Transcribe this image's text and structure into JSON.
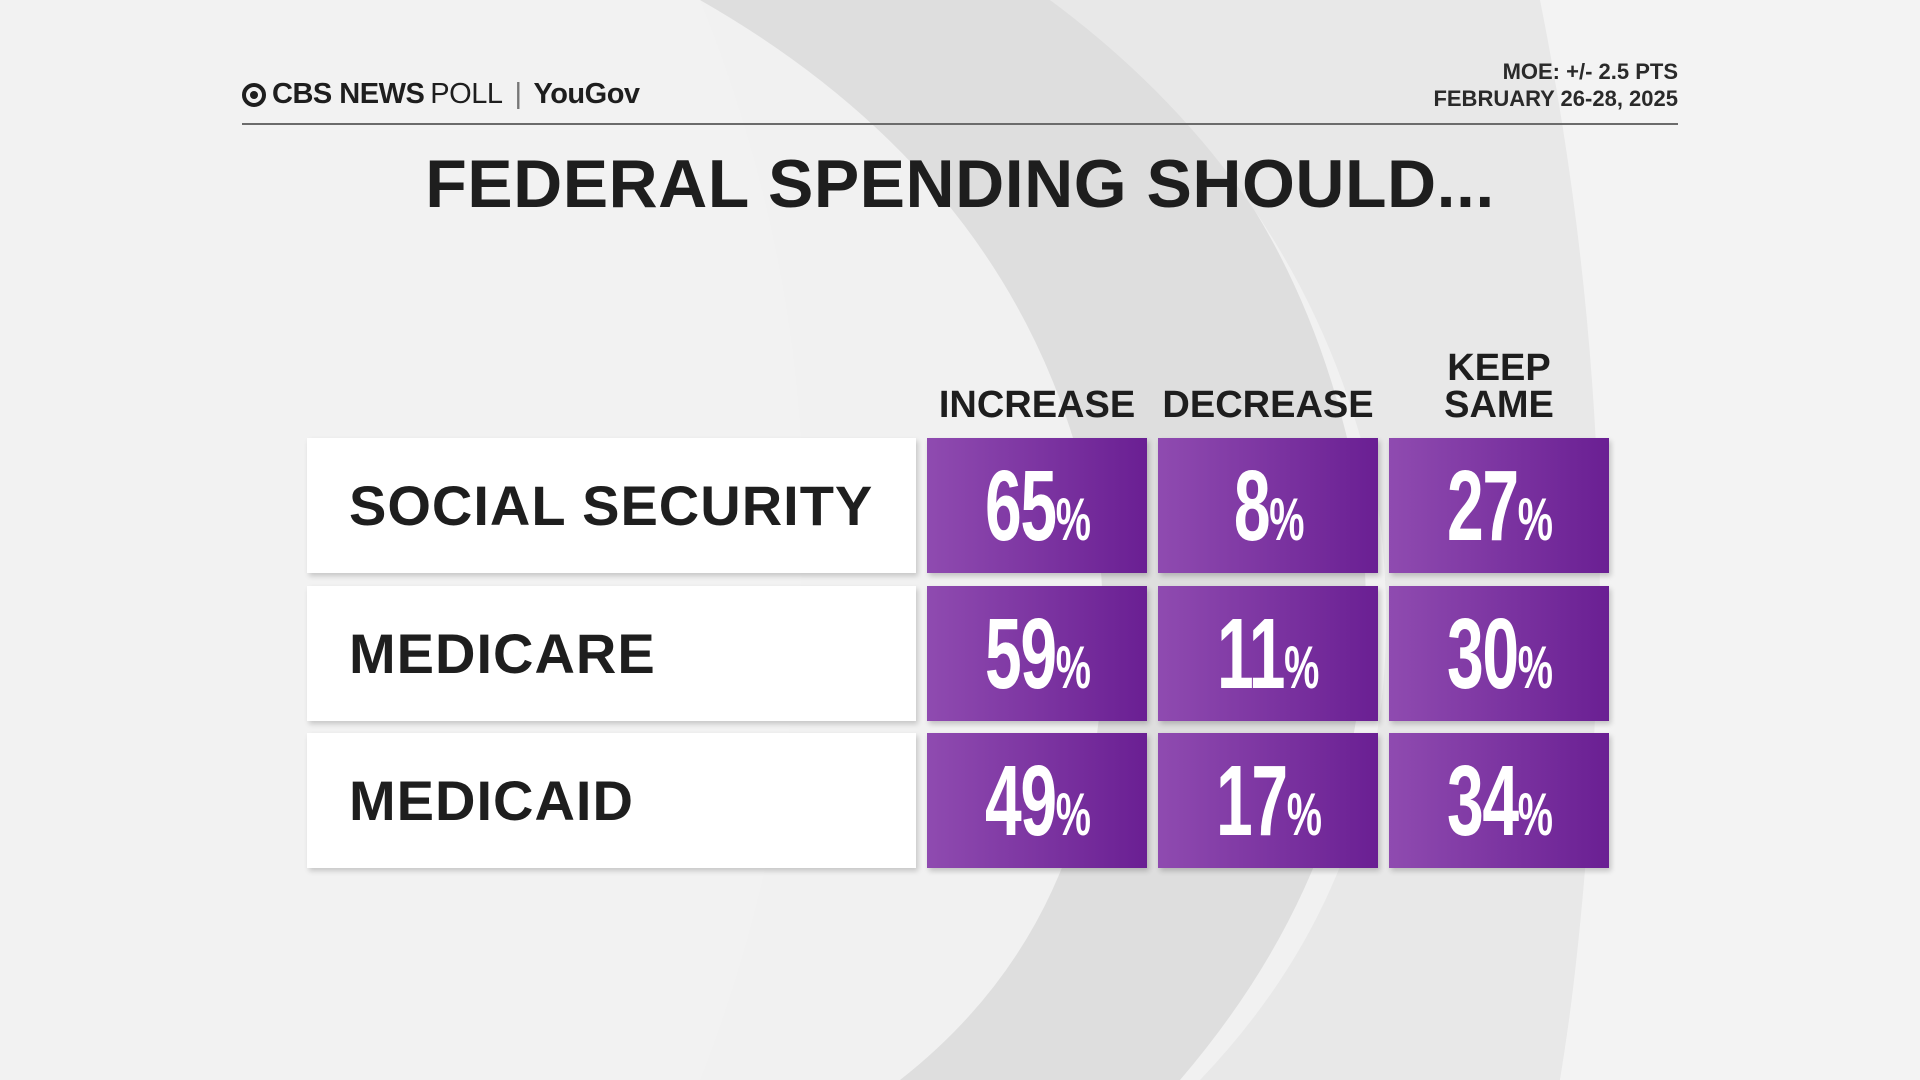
{
  "header": {
    "brand": "CBS NEWS",
    "brand_suffix": "POLL",
    "partner": "YouGov",
    "moe": "MOE: +/- 2.5 PTS",
    "dates": "FEBRUARY 26-28, 2025"
  },
  "chart_data": {
    "type": "table",
    "title": "FEDERAL SPENDING SHOULD...",
    "columns": [
      "INCREASE",
      "DECREASE",
      "KEEP SAME"
    ],
    "rows": [
      {
        "label": "SOCIAL SECURITY",
        "values": [
          65,
          8,
          27
        ]
      },
      {
        "label": "MEDICARE",
        "values": [
          59,
          11,
          30
        ]
      },
      {
        "label": "MEDICAID",
        "values": [
          49,
          17,
          34
        ]
      }
    ],
    "unit": "%",
    "colors": {
      "cell_start": "#8f4bb0",
      "cell_end": "#6a1f93",
      "text": "#1e1e1e"
    }
  }
}
